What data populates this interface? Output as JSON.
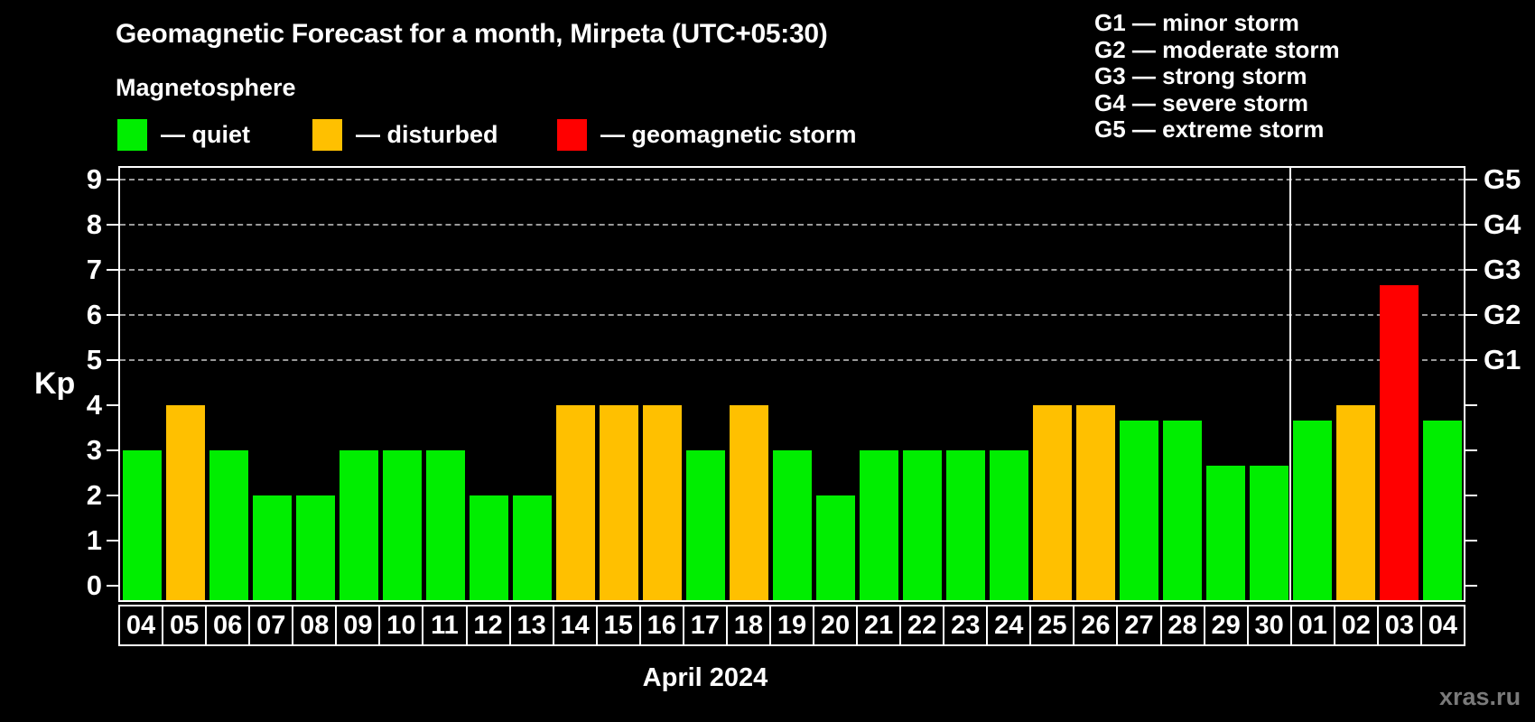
{
  "title": "Geomagnetic Forecast for a month, Mirpeta (UTC+05:30)",
  "subtitle": "Magnetosphere",
  "status_legend": {
    "items": [
      {
        "key": "quiet",
        "label": "— quiet",
        "color": "#00ee00"
      },
      {
        "key": "disturbed",
        "label": "— disturbed",
        "color": "#ffc000"
      },
      {
        "key": "storm",
        "label": "— geomagnetic storm",
        "color": "#ff0000"
      }
    ]
  },
  "g_scale_legend": {
    "items": [
      "G1 — minor storm",
      "G2 — moderate storm",
      "G3 — strong storm",
      "G4 — severe storm",
      "G5 — extreme storm"
    ]
  },
  "watermark": "xras.ru",
  "chart_data": {
    "type": "bar",
    "title": "Geomagnetic Forecast for a month, Mirpeta (UTC+05:30)",
    "ylabel": "Kp",
    "xlabel": "April 2024",
    "ylim": [
      0,
      9
    ],
    "yticks": [
      0,
      1,
      2,
      3,
      4,
      5,
      6,
      7,
      8,
      9
    ],
    "gridline_kp": [
      5,
      6,
      7,
      8,
      9
    ],
    "grid_style": "dashed horizontal lines at Kp 5-9 only",
    "legend_position": "top-left",
    "right_axis": [
      {
        "kp": 5,
        "label": "G1"
      },
      {
        "kp": 6,
        "label": "G2"
      },
      {
        "kp": 7,
        "label": "G3"
      },
      {
        "kp": 8,
        "label": "G4"
      },
      {
        "kp": 9,
        "label": "G5"
      }
    ],
    "month_separator_after_index": 26,
    "categories": [
      "04",
      "05",
      "06",
      "07",
      "08",
      "09",
      "10",
      "11",
      "12",
      "13",
      "14",
      "15",
      "16",
      "17",
      "18",
      "19",
      "20",
      "21",
      "22",
      "23",
      "24",
      "25",
      "26",
      "27",
      "28",
      "29",
      "30",
      "01",
      "02",
      "03",
      "04"
    ],
    "values": [
      3,
      4,
      3,
      2,
      2,
      3,
      3,
      3,
      2,
      2,
      4,
      4,
      4,
      3,
      4,
      3,
      2,
      3,
      3,
      3,
      3,
      4,
      4,
      3.67,
      3.67,
      2.67,
      2.67,
      3.67,
      4,
      6.67,
      3.67
    ],
    "statuses": [
      "quiet",
      "disturbed",
      "quiet",
      "quiet",
      "quiet",
      "quiet",
      "quiet",
      "quiet",
      "quiet",
      "quiet",
      "disturbed",
      "disturbed",
      "disturbed",
      "quiet",
      "disturbed",
      "quiet",
      "quiet",
      "quiet",
      "quiet",
      "quiet",
      "quiet",
      "disturbed",
      "disturbed",
      "quiet",
      "quiet",
      "quiet",
      "quiet",
      "quiet",
      "disturbed",
      "storm",
      "quiet"
    ],
    "status_colors": {
      "quiet": "#00ee00",
      "disturbed": "#ffc000",
      "storm": "#ff0000"
    }
  }
}
